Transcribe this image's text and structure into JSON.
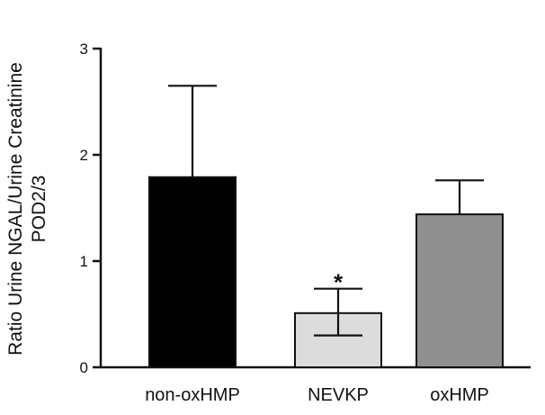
{
  "chart_data": {
    "type": "bar",
    "categories": [
      "non-oxHMP",
      "NEVKP",
      "oxHMP"
    ],
    "values": [
      1.79,
      0.51,
      1.44
    ],
    "error_upper": [
      2.65,
      0.74,
      1.76
    ],
    "error_lower": [
      null,
      0.3,
      null
    ],
    "colors": [
      "#000000",
      "#dcdcdc",
      "#8f8f8f"
    ],
    "ylabel_line1": "Ratio Urine NGAL/Urine Creatinine",
    "ylabel_line2": "POD2/3",
    "ylim": [
      0,
      3
    ],
    "yticks": [
      "0",
      "1",
      "2",
      "3"
    ],
    "annotations": [
      {
        "category": "NEVKP",
        "text": "*"
      }
    ],
    "grid": false
  }
}
